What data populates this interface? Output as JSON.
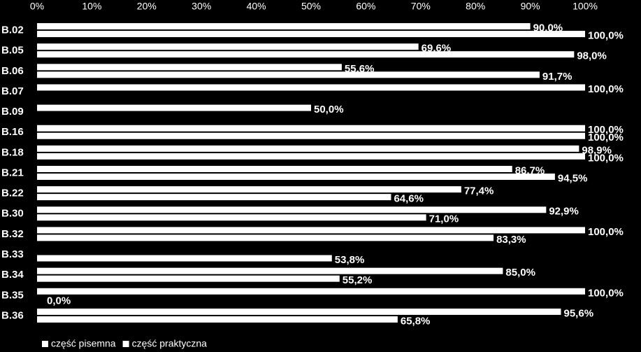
{
  "chart_data": {
    "type": "hbar",
    "categories": [
      "B.02",
      "B.05",
      "B.06",
      "B.07",
      "B.09",
      "B.16",
      "B.18",
      "B.21",
      "B.22",
      "B.30",
      "B.32",
      "B.33",
      "B.34",
      "B.35",
      "B.36"
    ],
    "series": [
      {
        "name": "część pisemna",
        "color": "#ffffff",
        "values": [
          90.0,
          69.6,
          55.6,
          100.0,
          50.0,
          100.0,
          98.9,
          86.7,
          77.4,
          92.9,
          100.0,
          null,
          85.0,
          100.0,
          95.6
        ],
        "value_labels": [
          "90,0%",
          "69,6%",
          "55,6%",
          "100,0%",
          "50,0%",
          "100,0%",
          "98,9%",
          "86,7%",
          "77,4%",
          "92,9%",
          "100,0%",
          null,
          "85,0%",
          "100,0%",
          "95,6%"
        ]
      },
      {
        "name": "część praktyczna",
        "color": "#ffffff",
        "values": [
          100.0,
          98.0,
          91.7,
          null,
          null,
          100.0,
          100.0,
          94.5,
          64.6,
          71.0,
          83.3,
          53.8,
          55.2,
          0.0,
          65.8
        ],
        "value_labels": [
          "100,0%",
          "98,0%",
          "91,7%",
          null,
          null,
          "100,0%",
          "100,0%",
          "94,5%",
          "64,6%",
          "71,0%",
          "83,3%",
          "53,8%",
          "55,2%",
          "0,0%",
          "65,8%"
        ]
      }
    ],
    "xlim": [
      0,
      100
    ],
    "xticks": [
      {
        "value": 0,
        "label": "0%"
      },
      {
        "value": 10,
        "label": "10%"
      },
      {
        "value": 20,
        "label": "20%"
      },
      {
        "value": 30,
        "label": "30%"
      },
      {
        "value": 40,
        "label": "40%"
      },
      {
        "value": 50,
        "label": "50%"
      },
      {
        "value": 60,
        "label": "60%"
      },
      {
        "value": 70,
        "label": "70%"
      },
      {
        "value": 80,
        "label": "80%"
      },
      {
        "value": 90,
        "label": "90%"
      },
      {
        "value": 100,
        "label": "100%"
      }
    ],
    "legend": "bottom-left"
  }
}
